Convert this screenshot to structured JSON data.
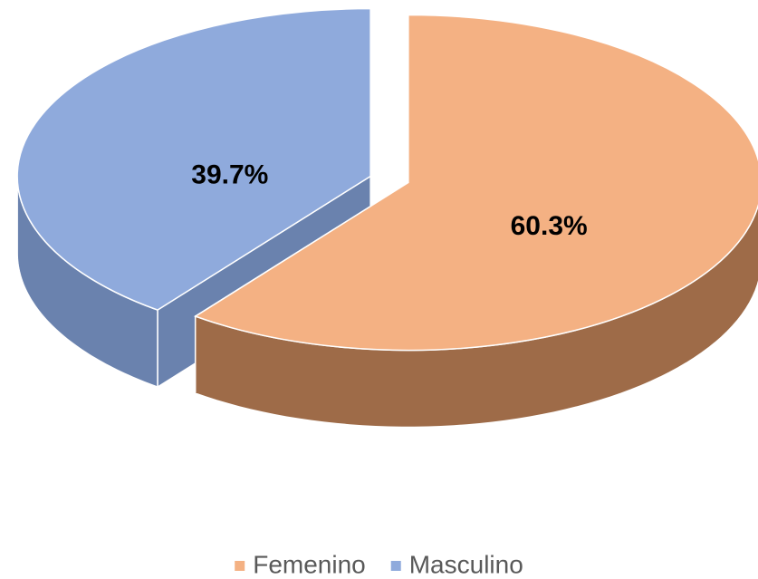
{
  "chart_data": {
    "type": "pie",
    "categories": [
      "Femenino",
      "Masculino"
    ],
    "values": [
      60.3,
      39.7
    ],
    "value_labels": [
      "60.3%",
      "39.7%"
    ],
    "colors": [
      "#F4B183",
      "#8FAADC"
    ],
    "side_colors": [
      "#9E6B48",
      "#6A82AE"
    ],
    "legend": "bottom"
  }
}
